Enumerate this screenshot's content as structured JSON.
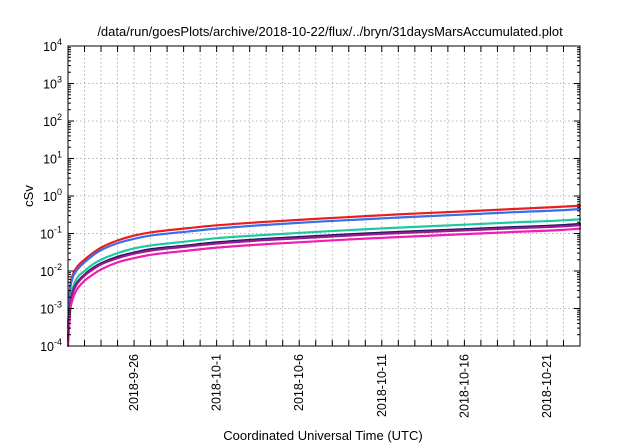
{
  "chart_data": {
    "type": "line",
    "title": "/data/run/goesPlots/archive/2018-10-22/flux/../bryn/31daysMarsAccumulated.plot",
    "xlabel": "Coordinated Universal Time (UTC)",
    "ylabel": "cSv",
    "y_scale": "log",
    "ylim": [
      0.0001,
      10000
    ],
    "y_ticks": [
      {
        "base": "10",
        "exp": "-4",
        "value": 0.0001
      },
      {
        "base": "10",
        "exp": "-3",
        "value": 0.001
      },
      {
        "base": "10",
        "exp": "-2",
        "value": 0.01
      },
      {
        "base": "10",
        "exp": "-1",
        "value": 0.1
      },
      {
        "base": "10",
        "exp": "0",
        "value": 1
      },
      {
        "base": "10",
        "exp": "1",
        "value": 10
      },
      {
        "base": "10",
        "exp": "2",
        "value": 100
      },
      {
        "base": "10",
        "exp": "3",
        "value": 1000
      },
      {
        "base": "10",
        "exp": "4",
        "value": 10000
      }
    ],
    "xlim": [
      "2018-09-22",
      "2018-10-23"
    ],
    "x_ticks": [
      "2018-9-26",
      "2018-10-1",
      "2018-10-6",
      "2018-10-11",
      "2018-10-16",
      "2018-10-21"
    ],
    "x_grid_dates": [
      "2018-09-23",
      "2018-09-24",
      "2018-09-25",
      "2018-09-26",
      "2018-09-27",
      "2018-09-28",
      "2018-09-29",
      "2018-09-30",
      "2018-10-01",
      "2018-10-02",
      "2018-10-03",
      "2018-10-04",
      "2018-10-05",
      "2018-10-06",
      "2018-10-07",
      "2018-10-08",
      "2018-10-09",
      "2018-10-10",
      "2018-10-11",
      "2018-10-12",
      "2018-10-13",
      "2018-10-14",
      "2018-10-15",
      "2018-10-16",
      "2018-10-17",
      "2018-10-18",
      "2018-10-19",
      "2018-10-20",
      "2018-10-21",
      "2018-10-22"
    ],
    "grid": true,
    "legend": "none",
    "x": [
      "2018-09-22",
      "2018-09-22T03:00",
      "2018-09-22T06:00",
      "2018-09-22T12:00",
      "2018-09-23",
      "2018-09-23T12:00",
      "2018-09-24",
      "2018-09-25",
      "2018-09-26",
      "2018-09-27",
      "2018-09-29",
      "2018-10-01",
      "2018-10-04",
      "2018-10-07",
      "2018-10-10",
      "2018-10-13",
      "2018-10-16",
      "2018-10-19",
      "2018-10-22",
      "2018-10-23"
    ],
    "series": [
      {
        "color": "#e8201c",
        "values": [
          0.0003,
          0.0035,
          0.007,
          0.012,
          0.02,
          0.03,
          0.042,
          0.065,
          0.088,
          0.107,
          0.135,
          0.165,
          0.205,
          0.245,
          0.29,
          0.34,
          0.39,
          0.45,
          0.52,
          0.55
        ]
      },
      {
        "color": "#3a6cf0",
        "values": [
          0.0003,
          0.003,
          0.006,
          0.01,
          0.017,
          0.026,
          0.036,
          0.055,
          0.072,
          0.088,
          0.11,
          0.135,
          0.17,
          0.205,
          0.24,
          0.28,
          0.32,
          0.37,
          0.42,
          0.45
        ]
      },
      {
        "color": "#20c8a0",
        "values": [
          0.0002,
          0.0015,
          0.003,
          0.006,
          0.01,
          0.015,
          0.02,
          0.03,
          0.04,
          0.048,
          0.06,
          0.075,
          0.092,
          0.11,
          0.13,
          0.15,
          0.172,
          0.198,
          0.225,
          0.24
        ]
      },
      {
        "color": "#1a1a6a",
        "values": [
          0.00015,
          0.0012,
          0.0025,
          0.0045,
          0.008,
          0.012,
          0.016,
          0.024,
          0.031,
          0.038,
          0.047,
          0.058,
          0.072,
          0.085,
          0.1,
          0.115,
          0.13,
          0.148,
          0.168,
          0.18
        ]
      },
      {
        "color": "#9a1a8a",
        "values": [
          0.00014,
          0.0011,
          0.0023,
          0.0042,
          0.0075,
          0.011,
          0.015,
          0.022,
          0.029,
          0.035,
          0.044,
          0.054,
          0.067,
          0.079,
          0.093,
          0.107,
          0.121,
          0.138,
          0.156,
          0.167
        ]
      },
      {
        "color": "#f01cb4",
        "values": [
          0.0001,
          0.0008,
          0.0016,
          0.003,
          0.0055,
          0.008,
          0.011,
          0.017,
          0.022,
          0.027,
          0.034,
          0.042,
          0.052,
          0.062,
          0.073,
          0.084,
          0.096,
          0.11,
          0.125,
          0.135
        ]
      }
    ]
  }
}
